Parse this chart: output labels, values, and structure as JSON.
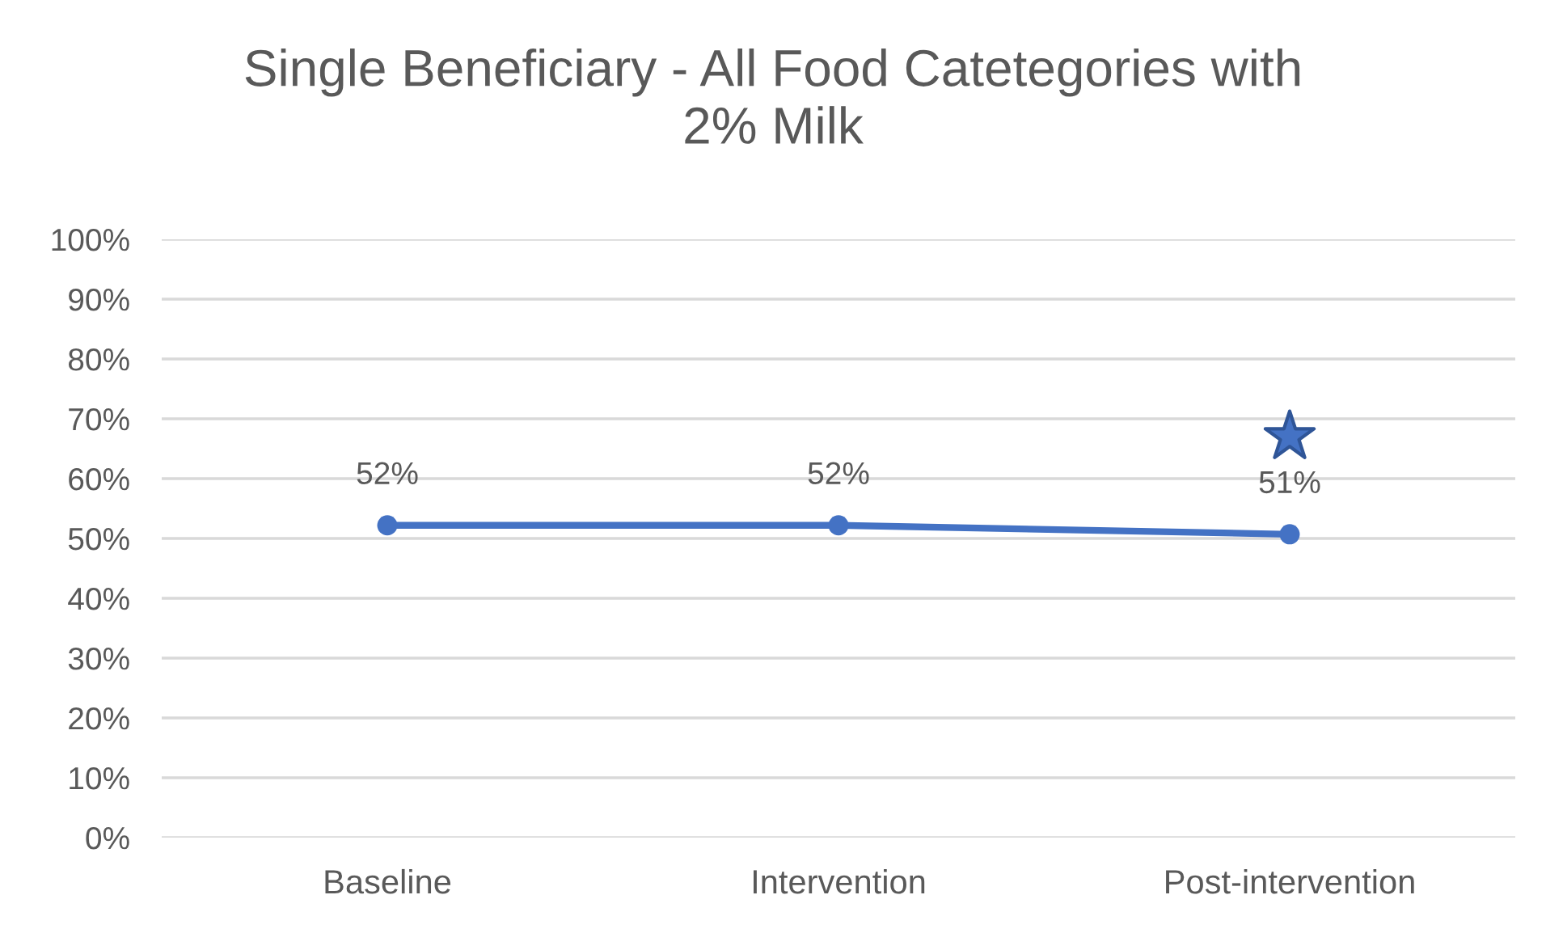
{
  "chart_data": {
    "type": "line",
    "title": "Single Beneficiary - All Food Catetegories with\n2% Milk",
    "categories": [
      "Baseline",
      "Intervention",
      "Post-intervention"
    ],
    "series": [
      {
        "color": "#4472c4",
        "values": [
          52.2,
          52.2,
          50.7
        ],
        "marker": "circle",
        "line_style": "solid",
        "value_labels": [
          "52%",
          "52%",
          "51%"
        ]
      },
      {
        "type": "scatter",
        "color": "#2f5597",
        "values": [
          null,
          null,
          67
        ],
        "marker": "star"
      }
    ],
    "ylim": [
      0,
      100
    ],
    "yticks": [
      {
        "value": 0,
        "label": "0%"
      },
      {
        "value": 10,
        "label": "10%"
      },
      {
        "value": 20,
        "label": "20%"
      },
      {
        "value": 30,
        "label": "30%"
      },
      {
        "value": 40,
        "label": "40%"
      },
      {
        "value": 50,
        "label": "50%"
      },
      {
        "value": 60,
        "label": "60%"
      },
      {
        "value": 70,
        "label": "70%"
      },
      {
        "value": 80,
        "label": "80%"
      },
      {
        "value": 90,
        "label": "90%"
      },
      {
        "value": 100,
        "label": "100%"
      }
    ],
    "grid": "y"
  }
}
